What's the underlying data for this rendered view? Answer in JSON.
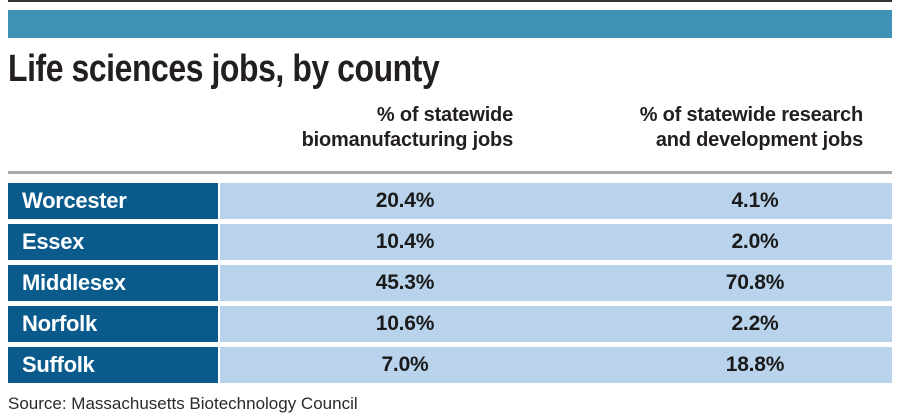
{
  "colors": {
    "accent_bar": "#3E93B5",
    "county_cell": "#0A5B8C",
    "row_band": "#B8D3EB",
    "rule_gray": "#A9A9A9",
    "rule_top": "#333333",
    "title_text": "#231F20",
    "value_text": "#1A1A1A",
    "county_text": "#FFFFFF"
  },
  "header": {
    "title": "Life sciences jobs, by county"
  },
  "table": {
    "columns": [
      {
        "line1": "% of statewide",
        "line2": "biomanufacturing jobs"
      },
      {
        "line1": "% of statewide research",
        "line2": "and development jobs"
      }
    ],
    "rows": [
      {
        "county": "Worcester",
        "biomanufacturing": "20.4%",
        "research_development": "4.1%"
      },
      {
        "county": "Essex",
        "biomanufacturing": "10.4%",
        "research_development": "2.0%"
      },
      {
        "county": "Middlesex",
        "biomanufacturing": "45.3%",
        "research_development": "70.8%"
      },
      {
        "county": "Norfolk",
        "biomanufacturing": "10.6%",
        "research_development": "2.2%"
      },
      {
        "county": "Suffolk",
        "biomanufacturing": "7.0%",
        "research_development": "18.8%"
      }
    ]
  },
  "footer": {
    "source": "Source: Massachusetts Biotechnology Council"
  },
  "chart_data": {
    "type": "table",
    "title": "Life sciences jobs, by county",
    "categories": [
      "Worcester",
      "Essex",
      "Middlesex",
      "Norfolk",
      "Suffolk"
    ],
    "series": [
      {
        "name": "% of statewide biomanufacturing jobs",
        "values": [
          20.4,
          10.4,
          45.3,
          10.6,
          7.0
        ]
      },
      {
        "name": "% of statewide research and development jobs",
        "values": [
          4.1,
          2.0,
          70.8,
          2.2,
          18.8
        ]
      }
    ],
    "source": "Source: Massachusetts Biotechnology Council"
  }
}
